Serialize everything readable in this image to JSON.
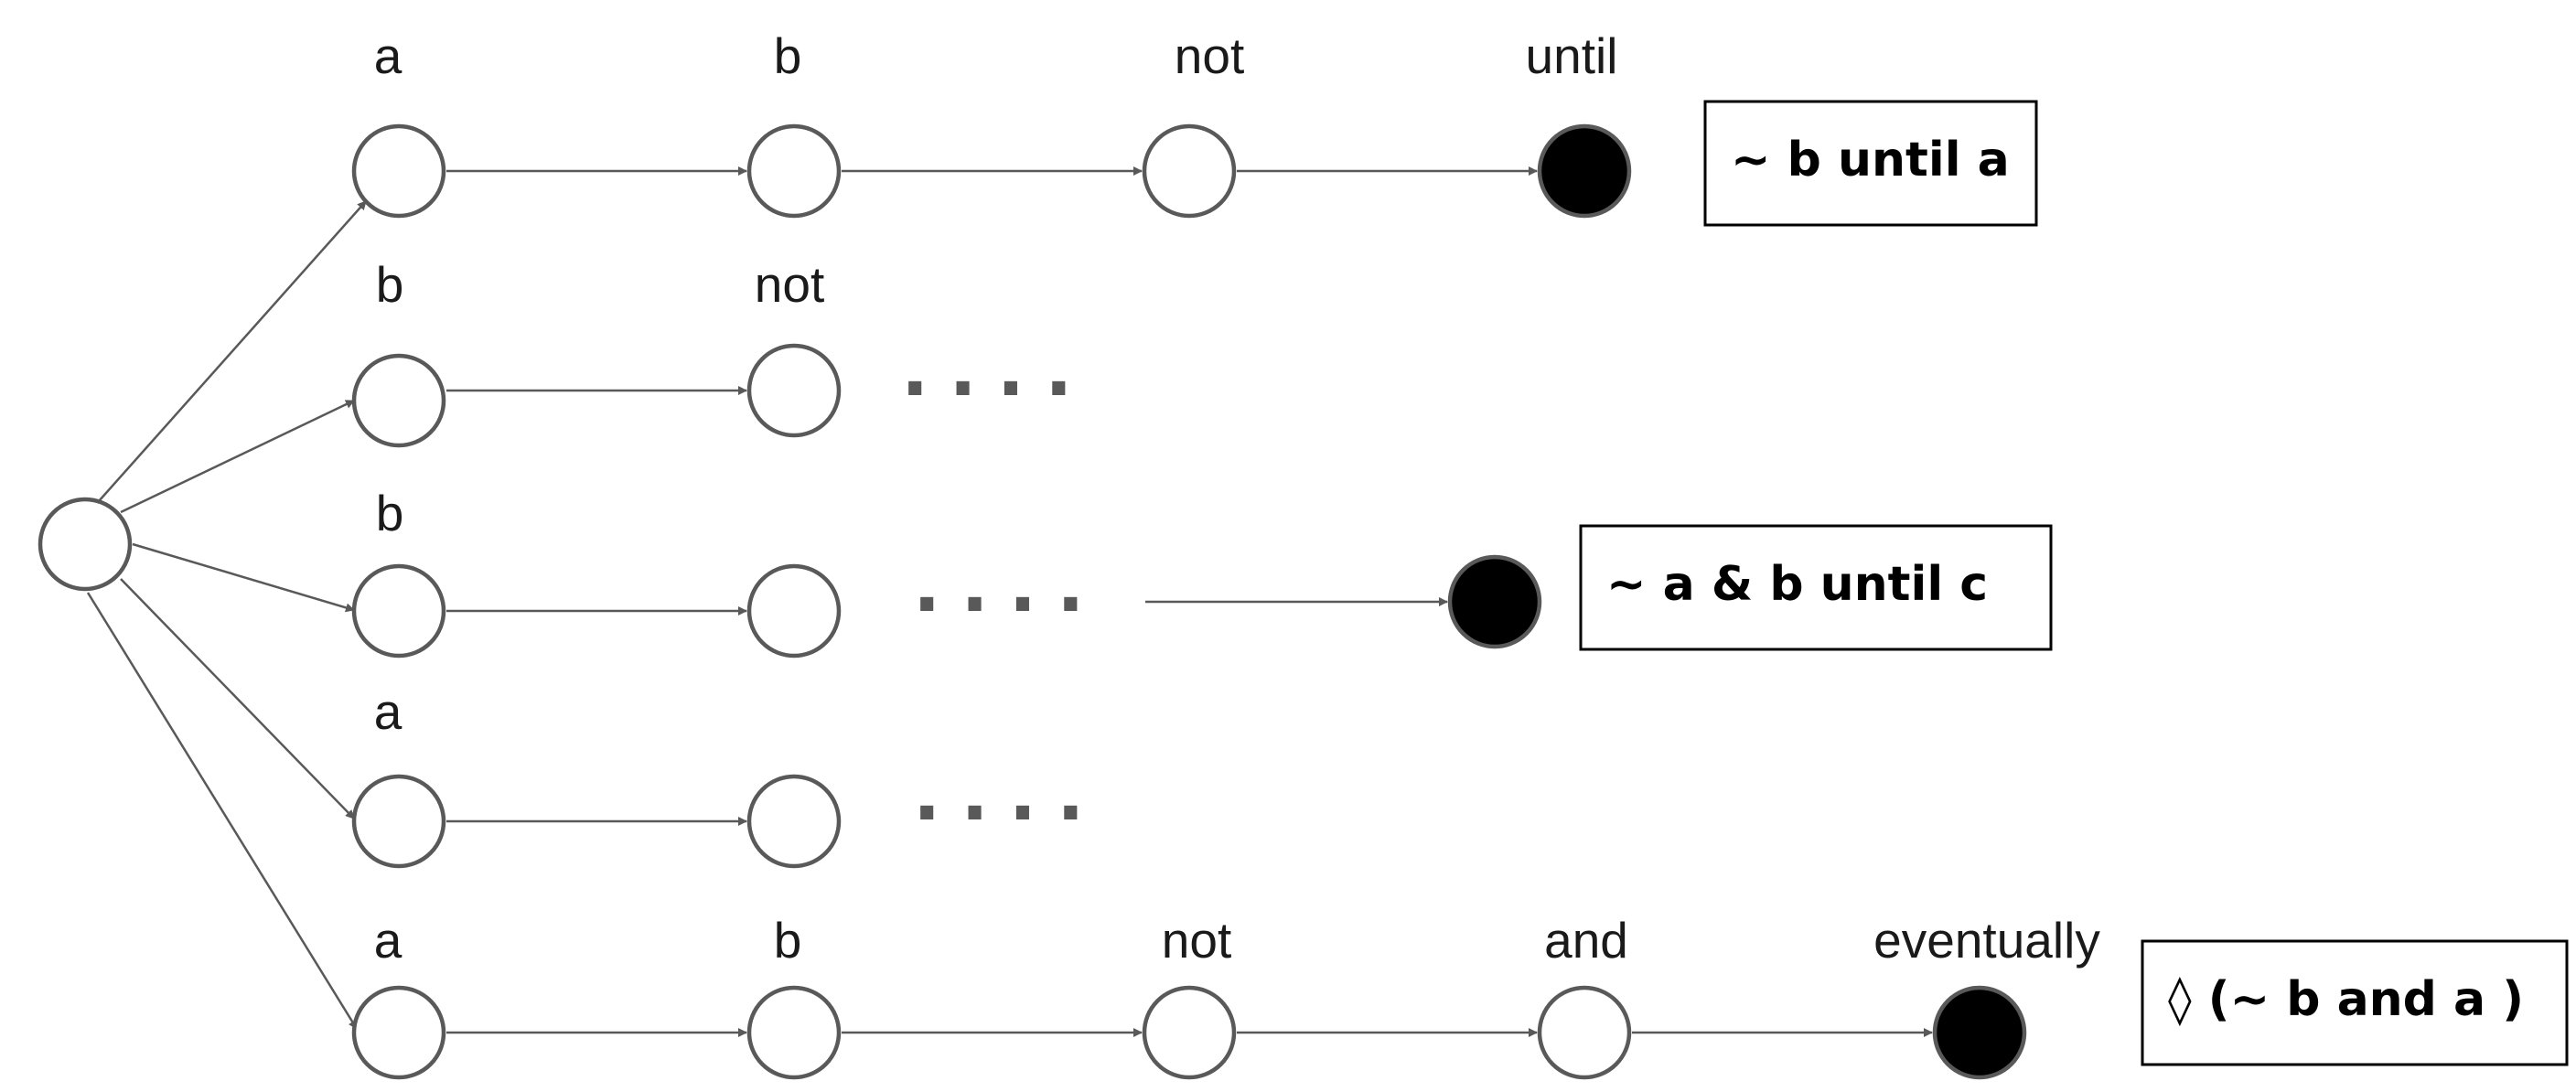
{
  "diagram": {
    "rows": [
      {
        "labels": [
          "a",
          "b",
          "not",
          "until"
        ],
        "result": "~ b until a"
      },
      {
        "labels": [
          "b",
          "not"
        ],
        "continuation": "...."
      },
      {
        "labels": [
          "b"
        ],
        "continuation": "....",
        "result": "~ a & b until c"
      },
      {
        "labels": [
          "a"
        ],
        "continuation": "...."
      },
      {
        "labels": [
          "a",
          "b",
          "not",
          "and",
          "eventually"
        ],
        "result": "◊ (~ b and a )"
      }
    ]
  }
}
